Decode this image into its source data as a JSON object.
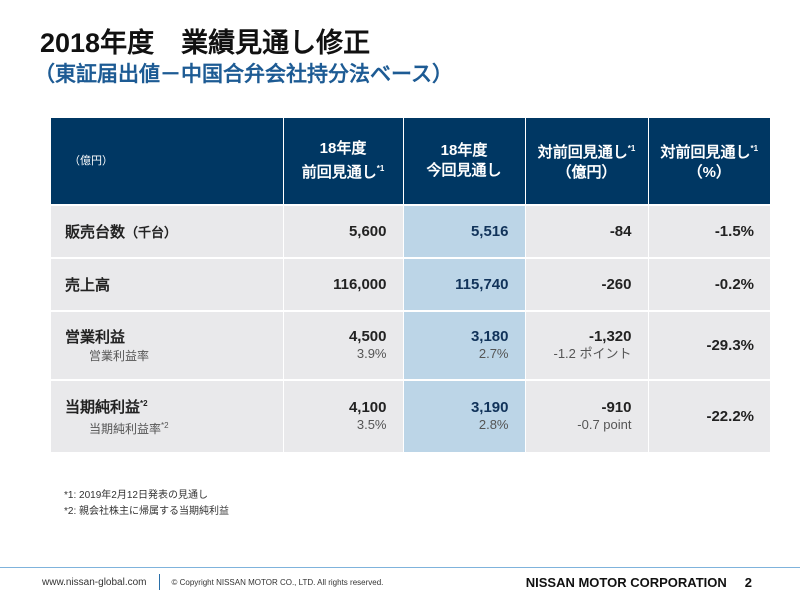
{
  "title": "2018年度　業績見通し修正",
  "subtitle": "（東証届出値－中国合弁会社持分法ベース）",
  "table": {
    "unit": "（億円）",
    "headers": [
      {
        "line1": "18年度",
        "line2": "前回見通し",
        "sup": "*1"
      },
      {
        "line1": "18年度",
        "line2": "今回見通し",
        "sup": ""
      },
      {
        "line1": "対前回見通し",
        "sup": "*1",
        "line2": "（億円）"
      },
      {
        "line1": "対前回見通し",
        "sup": "*1",
        "line2": "（%）"
      }
    ],
    "rows": [
      {
        "label": "販売台数",
        "label_unit": "（千台）",
        "prev": "5,600",
        "curr": "5,516",
        "diff": "-84",
        "pct": "-1.5%"
      },
      {
        "label": "売上高",
        "prev": "116,000",
        "curr": "115,740",
        "diff": "-260",
        "pct": "-0.2%"
      },
      {
        "label": "営業利益",
        "sublabel": "営業利益率",
        "prev": "4,500",
        "prev_sub": "3.9%",
        "curr": "3,180",
        "curr_sub": "2.7%",
        "diff": "-1,320",
        "diff_sub": "-1.2 ポイント",
        "pct": "-29.3%"
      },
      {
        "label": "当期純利益",
        "label_sup": "*2",
        "sublabel": "当期純利益率",
        "sublabel_sup": "*2",
        "prev": "4,100",
        "prev_sub": "3.5%",
        "curr": "3,190",
        "curr_sub": "2.8%",
        "diff": "-910",
        "diff_sub": "-0.7 point",
        "pct": "-22.2%"
      }
    ]
  },
  "notes": [
    "*1: 2019年2月12日発表の見通し",
    "*2: 親会社株主に帰属する当期純利益"
  ],
  "footer": {
    "url": "www.nissan-global.com",
    "copyright": "© Copyright NISSAN MOTOR CO., LTD. All rights reserved.",
    "corp": "NISSAN MOTOR CORPORATION",
    "page": "2"
  },
  "colors": {
    "header": "#003763",
    "highlight": "#bcd5e7",
    "accent": "#1d5b94"
  }
}
